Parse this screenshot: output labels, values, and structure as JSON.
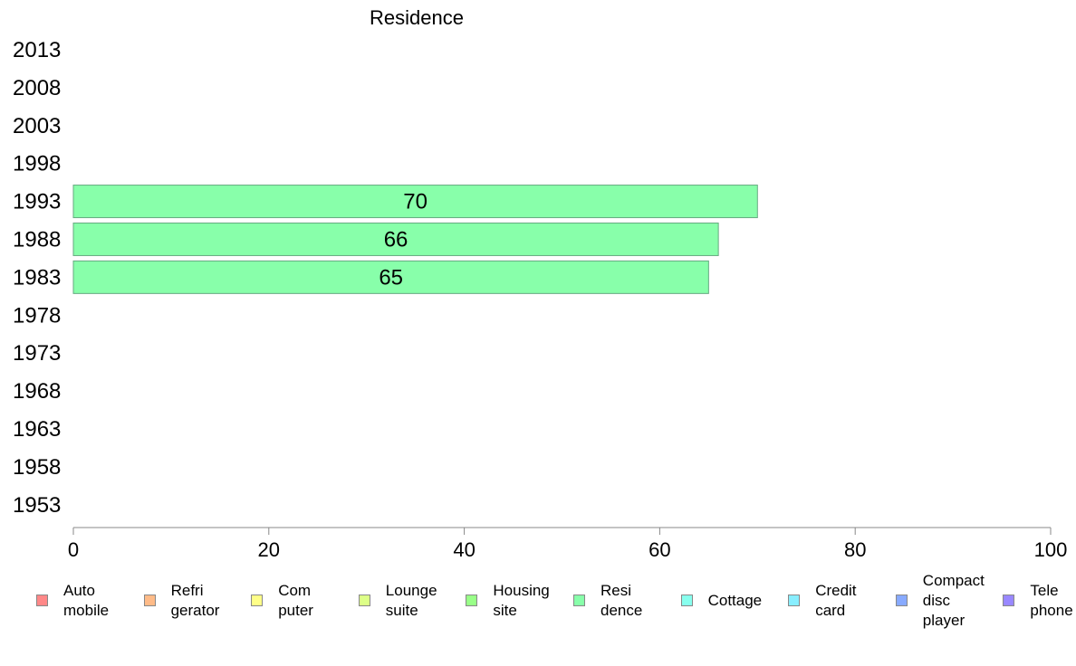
{
  "chart_data": {
    "type": "bar",
    "orientation": "horizontal",
    "title": "Residence",
    "categories": [
      "2013",
      "2008",
      "2003",
      "1998",
      "1993",
      "1988",
      "1983",
      "1978",
      "1973",
      "1968",
      "1963",
      "1958",
      "1953"
    ],
    "series": [
      {
        "name": "Resi\ndence",
        "values": [
          null,
          null,
          null,
          null,
          70,
          66,
          65,
          null,
          null,
          null,
          null,
          null,
          null
        ],
        "color": "#88ffaa"
      }
    ],
    "data_labels": [
      "",
      "",
      "",
      "",
      "70",
      "66",
      "65",
      "",
      "",
      "",
      "",
      "",
      ""
    ],
    "xlim": [
      0,
      100
    ],
    "xticks": [
      "0",
      "20",
      "40",
      "60",
      "80",
      "100"
    ],
    "grid": false,
    "legend_position": "bottom"
  },
  "legend": {
    "items": [
      {
        "label": "Auto\nmobile",
        "color": "#ff8888"
      },
      {
        "label": "Refri\ngerator",
        "color": "#ffbb88"
      },
      {
        "label": "Com\nputer",
        "color": "#ffff88"
      },
      {
        "label": "Lounge\nsuite",
        "color": "#ddff88"
      },
      {
        "label": "Housing\nsite",
        "color": "#99ff88"
      },
      {
        "label": "Resi\ndence",
        "color": "#88ffaa"
      },
      {
        "label": "Cottage",
        "color": "#88ffee"
      },
      {
        "label": "Credit\ncard",
        "color": "#88eeff"
      },
      {
        "label": "Compact\ndisc\nplayer",
        "color": "#88aaff"
      },
      {
        "label": "Tele\nphone",
        "color": "#9988ff"
      }
    ]
  }
}
